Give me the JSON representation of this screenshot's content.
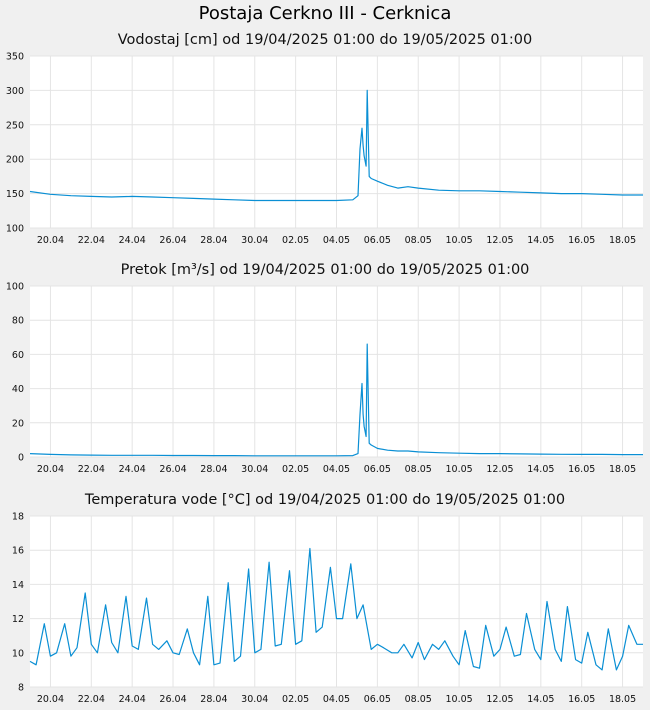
{
  "page": {
    "title": "Postaja Cerkno III - Cerknica"
  },
  "colors": {
    "line": "#0a8fd4",
    "grid": "#e4e4e4",
    "plot_bg": "#ffffff",
    "page_bg": "#f0f0f0"
  },
  "chart_data": [
    {
      "type": "line",
      "title": "Vodostaj [cm] od 19/04/2025 01:00 do 19/05/2025 01:00",
      "xlabel": "",
      "ylabel": "",
      "x_ticks": [
        "20.04",
        "22.04",
        "24.04",
        "26.04",
        "28.04",
        "30.04",
        "02.05",
        "04.05",
        "06.05",
        "08.05",
        "10.05",
        "12.05",
        "14.05",
        "16.05",
        "18.05"
      ],
      "y_ticks": [
        "100",
        "150",
        "200",
        "250",
        "300",
        "350"
      ],
      "ylim": [
        100,
        350
      ],
      "x_range_days": [
        0,
        30
      ],
      "grid": true,
      "series": [
        {
          "x": [
            0,
            1,
            2,
            3,
            4,
            5,
            6,
            7,
            8,
            9,
            10,
            11,
            12,
            13,
            14,
            15,
            15.8,
            16.05,
            16.15,
            16.25,
            16.3,
            16.35,
            16.45,
            16.5,
            16.6,
            16.7,
            17,
            17.5,
            18,
            18.5,
            19,
            20,
            21,
            22,
            23,
            24,
            25,
            26,
            27,
            28,
            29,
            30
          ],
          "values": [
            153,
            149,
            147,
            146,
            145,
            146,
            145,
            144,
            143,
            142,
            141,
            140,
            140,
            140,
            140,
            140,
            141,
            147,
            215,
            245,
            220,
            205,
            190,
            300,
            175,
            172,
            168,
            162,
            158,
            160,
            158,
            155,
            154,
            154,
            153,
            152,
            151,
            150,
            150,
            149,
            148,
            148
          ]
        }
      ]
    },
    {
      "type": "line",
      "title": "Pretok [m³/s] od 19/04/2025 01:00 do 19/05/2025 01:00",
      "xlabel": "",
      "ylabel": "",
      "x_ticks": [
        "20.04",
        "22.04",
        "24.04",
        "26.04",
        "28.04",
        "30.04",
        "02.05",
        "04.05",
        "06.05",
        "08.05",
        "10.05",
        "12.05",
        "14.05",
        "16.05",
        "18.05"
      ],
      "y_ticks": [
        "0",
        "20",
        "40",
        "60",
        "80",
        "100"
      ],
      "ylim": [
        0,
        100
      ],
      "x_range_days": [
        0,
        30
      ],
      "grid": true,
      "series": [
        {
          "x": [
            0,
            1,
            2,
            3,
            4,
            5,
            6,
            7,
            8,
            9,
            10,
            11,
            12,
            13,
            14,
            15,
            15.8,
            16.05,
            16.15,
            16.25,
            16.3,
            16.35,
            16.45,
            16.5,
            16.6,
            16.7,
            17,
            17.5,
            18,
            18.5,
            19,
            20,
            21,
            22,
            23,
            24,
            25,
            26,
            27,
            28,
            29,
            30
          ],
          "values": [
            2,
            1.5,
            1.2,
            1.1,
            1,
            1,
            1,
            0.9,
            0.9,
            0.8,
            0.8,
            0.7,
            0.7,
            0.7,
            0.7,
            0.7,
            0.8,
            2,
            25,
            43,
            25,
            18,
            12,
            66,
            8,
            7,
            5,
            4,
            3.5,
            3.5,
            3,
            2.5,
            2.2,
            2,
            2,
            1.8,
            1.7,
            1.6,
            1.5,
            1.5,
            1.4,
            1.4
          ]
        }
      ]
    },
    {
      "type": "line",
      "title": "Temperatura vode [°C] od 19/04/2025 01:00 do 19/05/2025 01:00",
      "xlabel": "",
      "ylabel": "",
      "x_ticks": [
        "20.04",
        "22.04",
        "24.04",
        "26.04",
        "28.04",
        "30.04",
        "02.05",
        "04.05",
        "06.05",
        "08.05",
        "10.05",
        "12.05",
        "14.05",
        "16.05",
        "18.05"
      ],
      "y_ticks": [
        "8",
        "10",
        "12",
        "14",
        "16",
        "18"
      ],
      "ylim": [
        8,
        18
      ],
      "x_range_days": [
        0,
        30
      ],
      "grid": true,
      "series": [
        {
          "x": [
            0,
            0.3,
            0.7,
            1,
            1.3,
            1.7,
            2,
            2.3,
            2.7,
            3,
            3.3,
            3.7,
            4,
            4.3,
            4.7,
            5,
            5.3,
            5.7,
            6,
            6.3,
            6.7,
            7,
            7.3,
            7.7,
            8,
            8.3,
            8.7,
            9,
            9.3,
            9.7,
            10,
            10.3,
            10.7,
            11,
            11.3,
            11.7,
            12,
            12.3,
            12.7,
            13,
            13.3,
            13.7,
            14,
            14.3,
            14.7,
            15,
            15.3,
            15.7,
            16,
            16.3,
            16.7,
            17,
            17.3,
            17.7,
            18,
            18.3,
            18.7,
            19,
            19.3,
            19.7,
            20,
            20.3,
            20.7,
            21,
            21.3,
            21.7,
            22,
            22.3,
            22.7,
            23,
            23.3,
            23.7,
            24,
            24.3,
            24.7,
            25,
            25.3,
            25.7,
            26,
            26.3,
            26.7,
            27,
            27.3,
            27.7,
            28,
            28.3,
            28.7,
            29,
            29.3,
            29.7,
            30
          ],
          "values": [
            9.5,
            9.3,
            11.7,
            9.8,
            10,
            11.7,
            9.8,
            10.3,
            13.5,
            10.5,
            10,
            12.8,
            10.6,
            10,
            13.3,
            10.4,
            10.2,
            13.2,
            10.5,
            10.2,
            10.7,
            10,
            9.9,
            11.4,
            10,
            9.3,
            13.3,
            9.3,
            9.4,
            14.1,
            9.5,
            9.8,
            14.9,
            10,
            10.2,
            15.3,
            10.4,
            10.5,
            14.8,
            10.5,
            10.7,
            16.1,
            11.2,
            11.5,
            15,
            12,
            12,
            15.2,
            12,
            12.8,
            10.2,
            10.5,
            10.3,
            10,
            10,
            10.5,
            9.7,
            10.6,
            9.6,
            10.5,
            10.2,
            10.7,
            9.8,
            9.3,
            11.3,
            9.2,
            9.1,
            11.6,
            9.8,
            10.2,
            11.5,
            9.8,
            9.9,
            12.3,
            10.2,
            9.6,
            13,
            10.2,
            9.5,
            12.7,
            9.6,
            9.4,
            11.2,
            9.3,
            9,
            11.4,
            9,
            9.8,
            11.6,
            10.5,
            10.5
          ]
        }
      ]
    }
  ]
}
